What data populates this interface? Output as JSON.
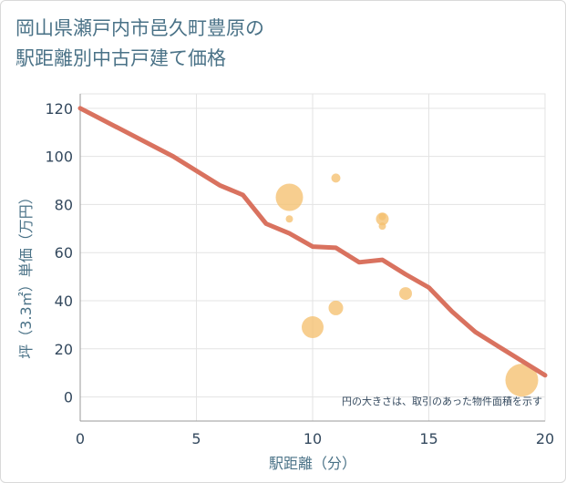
{
  "title": {
    "line1": "岡山県瀬戸内市邑久町豊原の",
    "line2": "駅距離別中古戸建て価格"
  },
  "chart_data": {
    "type": "scatter",
    "xlabel": "駅距離（分）",
    "ylabel": "坪（3.3㎡）単価（万円）",
    "xlim": [
      0,
      20
    ],
    "ylim": [
      -10,
      126
    ],
    "xticks": [
      0,
      5,
      10,
      15,
      20
    ],
    "yticks": [
      0,
      20,
      40,
      60,
      80,
      100,
      120
    ],
    "grid": true,
    "note": "円の大きさは、取引のあった物件面積を示す",
    "colors": {
      "trend": "#d9725f",
      "bubble": "#f5c070"
    },
    "series": [
      {
        "type": "line",
        "points": [
          [
            0,
            120
          ],
          [
            2,
            110
          ],
          [
            4,
            100
          ],
          [
            6,
            88
          ],
          [
            7,
            84
          ],
          [
            8,
            72
          ],
          [
            9,
            68
          ],
          [
            10,
            62.5
          ],
          [
            11,
            62
          ],
          [
            12,
            56
          ],
          [
            13,
            57
          ],
          [
            14,
            51
          ],
          [
            15,
            45.5
          ],
          [
            16,
            35.5
          ],
          [
            17,
            27
          ],
          [
            18,
            21
          ],
          [
            19,
            15
          ],
          [
            20,
            9
          ]
        ]
      },
      {
        "type": "bubble",
        "points": [
          {
            "x": 9,
            "y": 83,
            "r": 15
          },
          {
            "x": 9,
            "y": 74,
            "r": 4
          },
          {
            "x": 11,
            "y": 91,
            "r": 5
          },
          {
            "x": 13,
            "y": 74,
            "r": 7
          },
          {
            "x": 13,
            "y": 75,
            "r": 4
          },
          {
            "x": 13,
            "y": 71,
            "r": 4
          },
          {
            "x": 10,
            "y": 29,
            "r": 12
          },
          {
            "x": 11,
            "y": 37,
            "r": 8
          },
          {
            "x": 14,
            "y": 43,
            "r": 7
          },
          {
            "x": 19,
            "y": 7,
            "r": 18
          }
        ]
      }
    ]
  }
}
